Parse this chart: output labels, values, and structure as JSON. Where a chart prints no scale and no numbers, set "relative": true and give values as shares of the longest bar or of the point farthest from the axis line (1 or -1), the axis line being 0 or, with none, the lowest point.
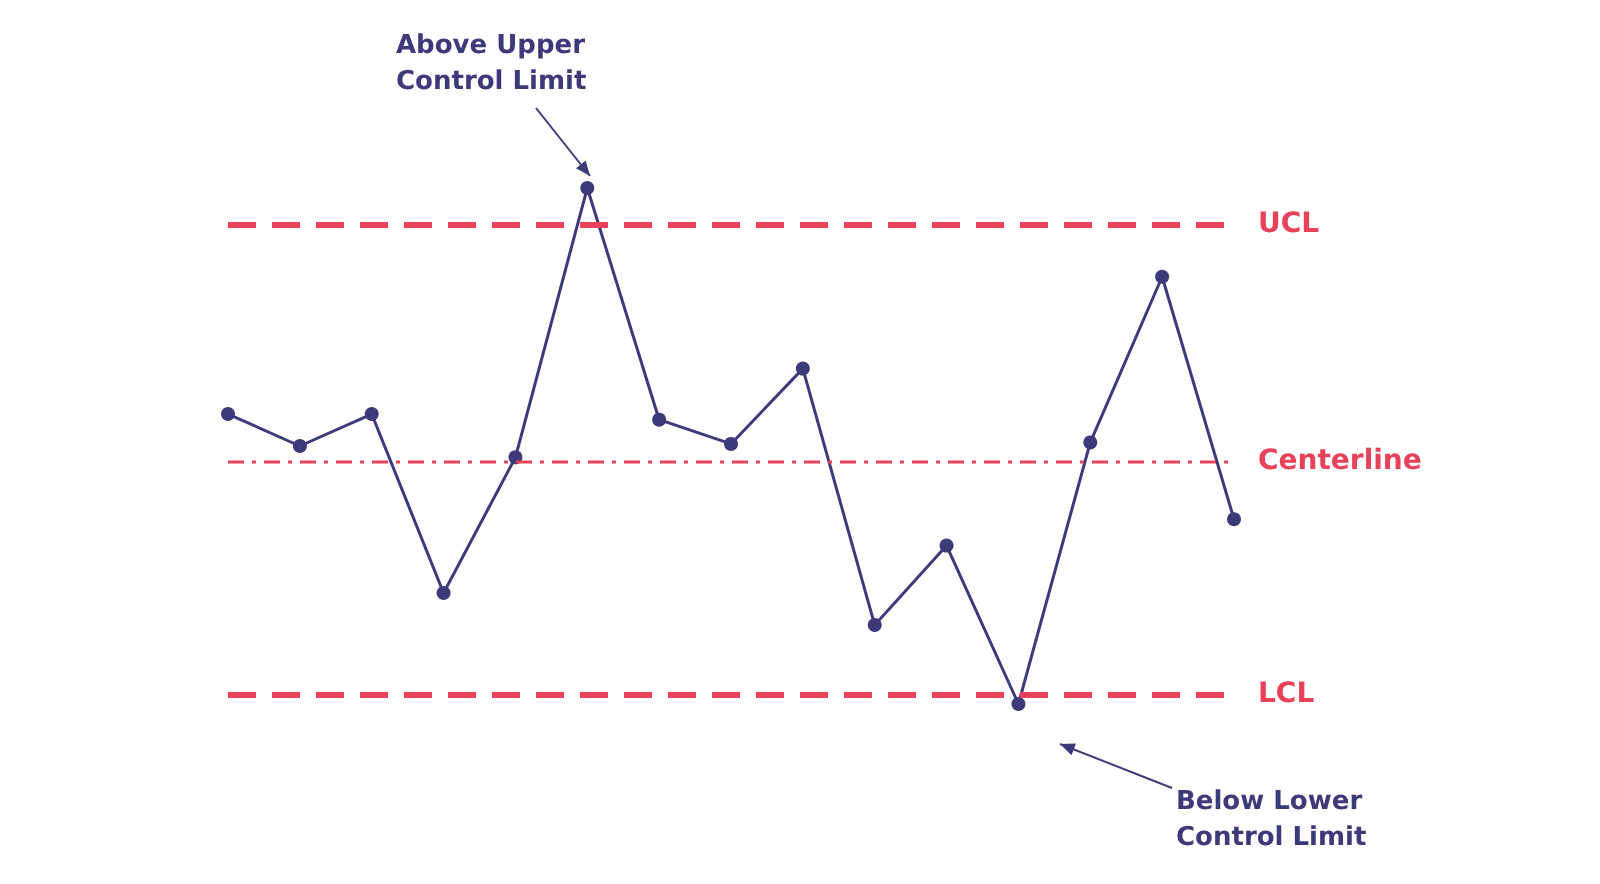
{
  "chart_data": {
    "type": "line",
    "relative": true,
    "categories": [
      null,
      null,
      null,
      null,
      null,
      null,
      null,
      null,
      null,
      null,
      null,
      null,
      null,
      null,
      null
    ],
    "series": [
      {
        "color": "#3d3a7a",
        "values": [
          0.562,
          0.5,
          0.562,
          0.215,
          0.478,
          1,
          0.551,
          0.504,
          0.65,
          0.153,
          0.307,
          0,
          0.507,
          0.828,
          0.358
        ]
      }
    ],
    "marker": "circle",
    "line_style": "solid",
    "grid": false,
    "ref_lines": [
      {
        "axis": "y",
        "value": 0.934,
        "label": "UCL",
        "color": "#e8425a",
        "line_style": "dashed"
      },
      {
        "axis": "y",
        "value": 0.474,
        "label": "Centerline",
        "color": "#e8425a",
        "line_style": "dotted"
      },
      {
        "axis": "y",
        "value": 0.022,
        "label": "LCL",
        "color": "#e8425a",
        "line_style": "dashed"
      }
    ],
    "annotations": [
      "Above Upper Control Limit",
      "Below Lower Control Limit"
    ]
  }
}
